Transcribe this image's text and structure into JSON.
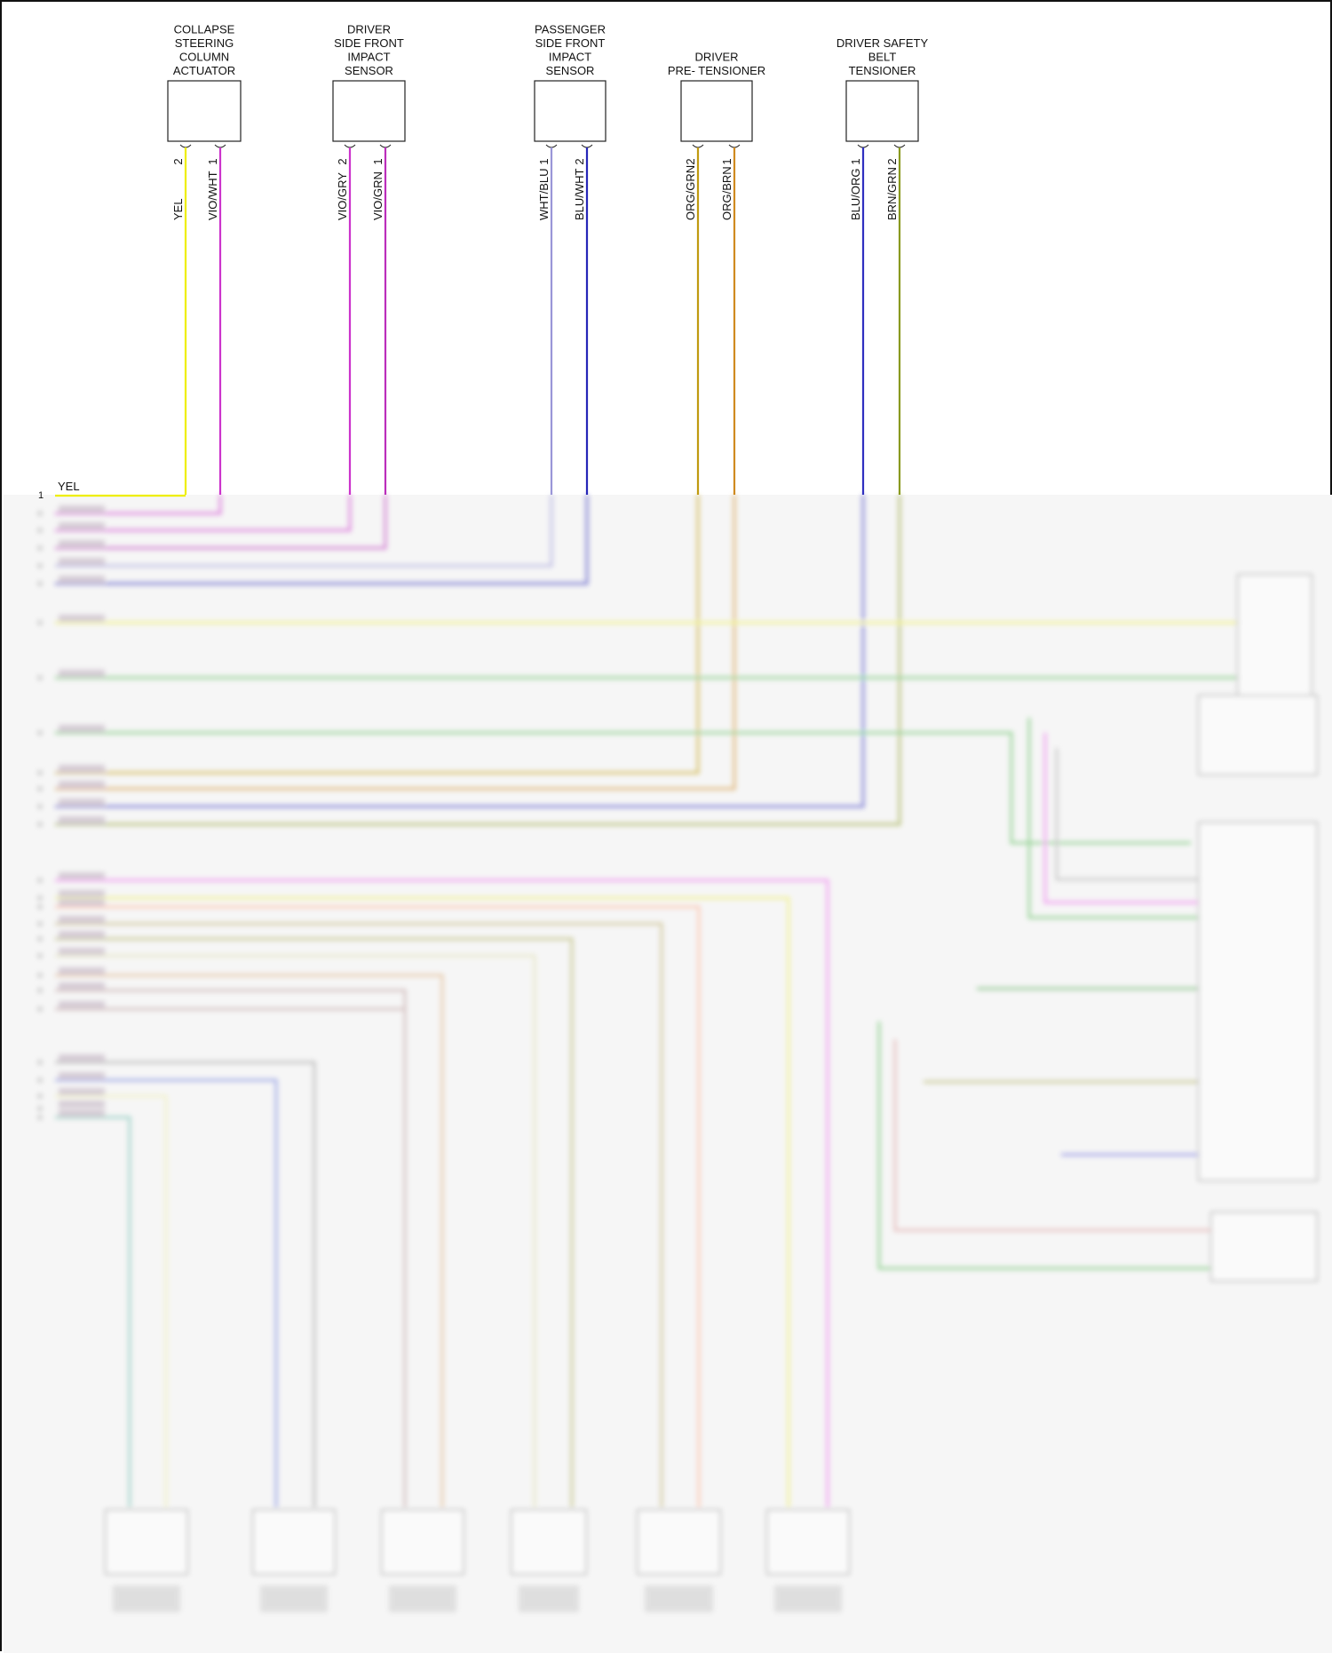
{
  "components": [
    {
      "title_lines": [
        "COLLAPSE",
        "STEERING",
        "COLUMN",
        "ACTUATOR"
      ],
      "pins": [
        {
          "num": "2",
          "wire": "YEL",
          "color": "#eeee00"
        },
        {
          "num": "1",
          "wire": "VIO/WHT",
          "color": "#cc33cc"
        }
      ]
    },
    {
      "title_lines": [
        "DRIVER",
        "SIDE FRONT",
        "IMPACT",
        "SENSOR"
      ],
      "pins": [
        {
          "num": "2",
          "wire": "VIO/GRY",
          "color": "#cc33cc"
        },
        {
          "num": "1",
          "wire": "VIO/GRN",
          "color": "#bb2ebb"
        }
      ]
    },
    {
      "title_lines": [
        "PASSENGER",
        "SIDE FRONT",
        "IMPACT",
        "SENSOR"
      ],
      "pins": [
        {
          "num": "1",
          "wire": "WHT/BLU",
          "color": "#9a96d8"
        },
        {
          "num": "2",
          "wire": "BLU/WHT",
          "color": "#2626b8"
        }
      ]
    },
    {
      "title_lines": [
        "DRIVER",
        "PRE- TENSIONER"
      ],
      "pins": [
        {
          "num": "2",
          "wire": "ORG/GRN",
          "color": "#c09a10"
        },
        {
          "num": "1",
          "wire": "ORG/BRN",
          "color": "#d08a20"
        }
      ]
    },
    {
      "title_lines": [
        "DRIVER SAFETY",
        "BELT",
        "TENSIONER"
      ],
      "pins": [
        {
          "num": "1",
          "wire": "BLU/ORG",
          "color": "#3030c0"
        },
        {
          "num": "2",
          "wire": "BRN/GRN",
          "color": "#8a9a20"
        }
      ]
    }
  ],
  "module": {
    "pin1_num": "1",
    "pin1_wire": "YEL"
  }
}
